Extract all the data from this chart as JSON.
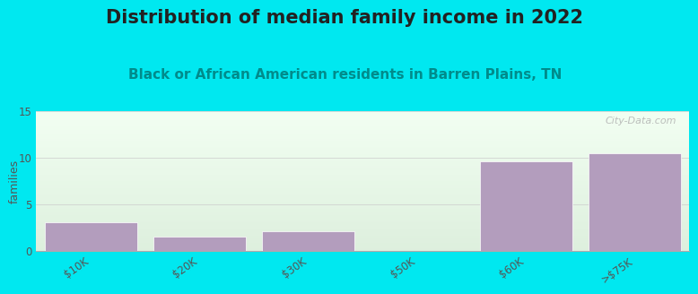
{
  "title": "Distribution of median family income in 2022",
  "subtitle": "Black or African American residents in Barren Plains, TN",
  "categories": [
    "$10K",
    "$20K",
    "$30K",
    "$50K",
    "$60K",
    ">$75K"
  ],
  "values": [
    3.0,
    1.5,
    2.1,
    0,
    9.6,
    10.4
  ],
  "bar_color": "#b39dbd",
  "bar_edge_color": "#ffffff",
  "ylabel": "families",
  "ylim": [
    0,
    15
  ],
  "yticks": [
    0,
    5,
    10,
    15
  ],
  "outer_bg": "#00e8f0",
  "title_fontsize": 15,
  "subtitle_fontsize": 11,
  "subtitle_color": "#008b8b",
  "title_color": "#222222",
  "watermark": "City-Data.com",
  "tick_label_color": "#555555",
  "grad_color_topleft": "#e8f5e2",
  "grad_color_topright": "#f5fffa",
  "grad_color_bottom": "#c8e6c2"
}
